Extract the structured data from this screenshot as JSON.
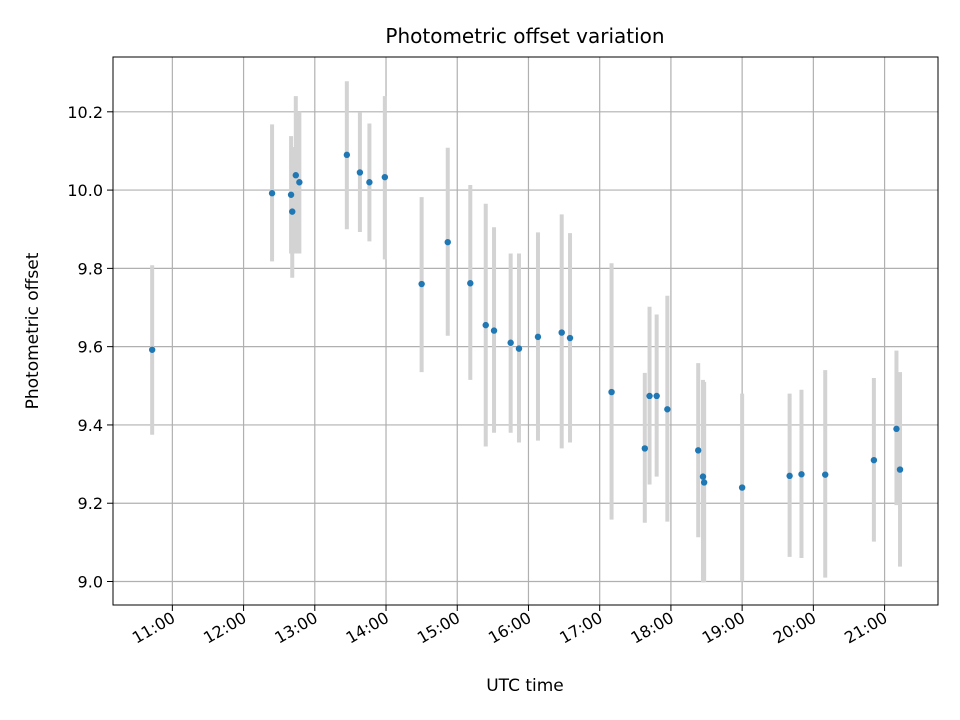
{
  "chart_data": {
    "type": "scatter",
    "title": "Photometric offset variation",
    "xlabel": "UTC time",
    "ylabel": "Photometric offset",
    "grid": true,
    "legend": "none",
    "xlim": [
      "10:10",
      "21:45"
    ],
    "ylim": [
      8.94,
      10.34
    ],
    "x_ticks": [
      "11:00",
      "12:00",
      "13:00",
      "14:00",
      "15:00",
      "16:00",
      "17:00",
      "18:00",
      "19:00",
      "20:00",
      "21:00"
    ],
    "y_ticks": [
      9.0,
      9.2,
      9.4,
      9.6,
      9.8,
      10.0,
      10.2
    ],
    "y_tick_labels": [
      "9.0",
      "9.2",
      "9.4",
      "9.6",
      "9.8",
      "10.0",
      "10.2"
    ],
    "colors": {
      "points": "#1f77b4",
      "errorbars": "#d3d3d3",
      "grid": "#b0b0b0"
    },
    "points": [
      {
        "x": "10:43",
        "y": 9.592,
        "low": 9.375,
        "high": 9.808
      },
      {
        "x": "12:24",
        "y": 9.992,
        "low": 9.818,
        "high": 10.168
      },
      {
        "x": "12:40",
        "y": 9.988,
        "low": 9.838,
        "high": 10.138
      },
      {
        "x": "12:41",
        "y": 9.945,
        "low": 9.776,
        "high": 10.11
      },
      {
        "x": "12:44",
        "y": 10.038,
        "low": 9.838,
        "high": 10.24
      },
      {
        "x": "12:47",
        "y": 10.02,
        "low": 9.838,
        "high": 10.2
      },
      {
        "x": "13:27",
        "y": 10.09,
        "low": 9.9,
        "high": 10.278
      },
      {
        "x": "13:38",
        "y": 10.045,
        "low": 9.893,
        "high": 10.198
      },
      {
        "x": "13:46",
        "y": 10.02,
        "low": 9.869,
        "high": 10.17
      },
      {
        "x": "13:59",
        "y": 10.033,
        "low": 9.823,
        "high": 10.24
      },
      {
        "x": "14:30",
        "y": 9.76,
        "low": 9.535,
        "high": 9.982
      },
      {
        "x": "14:52",
        "y": 9.867,
        "low": 9.628,
        "high": 10.108
      },
      {
        "x": "15:11",
        "y": 9.762,
        "low": 9.515,
        "high": 10.013
      },
      {
        "x": "15:24",
        "y": 9.655,
        "low": 9.345,
        "high": 9.965
      },
      {
        "x": "15:31",
        "y": 9.641,
        "low": 9.38,
        "high": 9.905
      },
      {
        "x": "15:45",
        "y": 9.61,
        "low": 9.38,
        "high": 9.838
      },
      {
        "x": "15:52",
        "y": 9.595,
        "low": 9.355,
        "high": 9.838
      },
      {
        "x": "16:08",
        "y": 9.625,
        "low": 9.36,
        "high": 9.892
      },
      {
        "x": "16:28",
        "y": 9.636,
        "low": 9.34,
        "high": 9.938
      },
      {
        "x": "16:35",
        "y": 9.622,
        "low": 9.355,
        "high": 9.89
      },
      {
        "x": "17:10",
        "y": 9.484,
        "low": 9.158,
        "high": 9.813
      },
      {
        "x": "17:38",
        "y": 9.34,
        "low": 9.15,
        "high": 9.533
      },
      {
        "x": "17:42",
        "y": 9.474,
        "low": 9.248,
        "high": 9.702
      },
      {
        "x": "17:48",
        "y": 9.474,
        "low": 9.268,
        "high": 9.682
      },
      {
        "x": "17:57",
        "y": 9.44,
        "low": 9.153,
        "high": 9.73
      },
      {
        "x": "18:23",
        "y": 9.335,
        "low": 9.113,
        "high": 9.558
      },
      {
        "x": "18:27",
        "y": 9.268,
        "low": 8.998,
        "high": 9.515
      },
      {
        "x": "18:28",
        "y": 9.253,
        "low": 8.998,
        "high": 9.51
      },
      {
        "x": "19:00",
        "y": 9.24,
        "low": 9.0,
        "high": 9.48
      },
      {
        "x": "19:40",
        "y": 9.27,
        "low": 9.063,
        "high": 9.48
      },
      {
        "x": "19:50",
        "y": 9.274,
        "low": 9.06,
        "high": 9.49
      },
      {
        "x": "20:10",
        "y": 9.273,
        "low": 9.01,
        "high": 9.54
      },
      {
        "x": "20:51",
        "y": 9.31,
        "low": 9.102,
        "high": 9.52
      },
      {
        "x": "21:10",
        "y": 9.39,
        "low": 9.195,
        "high": 9.59
      },
      {
        "x": "21:13",
        "y": 9.286,
        "low": 9.038,
        "high": 9.535
      }
    ]
  }
}
